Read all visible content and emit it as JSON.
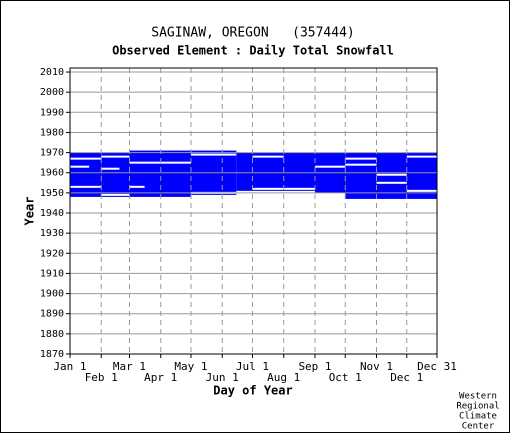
{
  "chart_data": {
    "type": "coverage",
    "title": "SAGINAW, OREGON   (357444)",
    "subtitle": "Observed Element : Daily Total Snowfall",
    "x_label": "Day of Year",
    "y_label": "Year",
    "footer": [
      "Western",
      "Regional",
      "Climate",
      "Center"
    ],
    "color": "#0000ff",
    "gap_color": "#ffffff",
    "grid": true,
    "xlim": [
      1,
      365
    ],
    "ylim": [
      1870,
      2012
    ],
    "xticks": [
      {
        "value": 1,
        "label": "Jan 1"
      },
      {
        "value": 32,
        "label": "Feb 1"
      },
      {
        "value": 60,
        "label": "Mar 1"
      },
      {
        "value": 91,
        "label": "Apr 1"
      },
      {
        "value": 121,
        "label": "May 1"
      },
      {
        "value": 152,
        "label": "Jun 1"
      },
      {
        "value": 182,
        "label": "Jul 1"
      },
      {
        "value": 213,
        "label": "Aug 1"
      },
      {
        "value": 244,
        "label": "Sep 1"
      },
      {
        "value": 274,
        "label": "Oct 1"
      },
      {
        "value": 305,
        "label": "Nov 1"
      },
      {
        "value": 335,
        "label": "Dec 1"
      },
      {
        "value": 365,
        "label": "Dec 31"
      }
    ],
    "yticks": [
      1870,
      1880,
      1890,
      1900,
      1910,
      1920,
      1930,
      1940,
      1950,
      1960,
      1970,
      1980,
      1990,
      2000,
      2010
    ],
    "blocks": [
      {
        "start_day": 1,
        "end_day": 32,
        "start_year": 1948,
        "end_year": 1970
      },
      {
        "start_day": 32,
        "end_day": 60,
        "start_year": 1948,
        "end_year": 1970
      },
      {
        "start_day": 60,
        "end_day": 121,
        "start_year": 1948,
        "end_year": 1971
      },
      {
        "start_day": 121,
        "end_day": 166,
        "start_year": 1949,
        "end_year": 1971
      },
      {
        "start_day": 166,
        "end_day": 244,
        "start_year": 1951,
        "end_year": 1970
      },
      {
        "start_day": 244,
        "end_day": 274,
        "start_year": 1950,
        "end_year": 1970
      },
      {
        "start_day": 274,
        "end_day": 365,
        "start_year": 1947,
        "end_year": 1970
      }
    ],
    "gaps": [
      {
        "start_day": 1,
        "end_day": 32,
        "year": 1967
      },
      {
        "start_day": 1,
        "end_day": 20,
        "year": 1963
      },
      {
        "start_day": 1,
        "end_day": 32,
        "year": 1953
      },
      {
        "start_day": 32,
        "end_day": 60,
        "year": 1968
      },
      {
        "start_day": 32,
        "end_day": 50,
        "year": 1962
      },
      {
        "start_day": 32,
        "end_day": 60,
        "year": 1949
      },
      {
        "start_day": 60,
        "end_day": 121,
        "year": 1965
      },
      {
        "start_day": 60,
        "end_day": 75,
        "year": 1953
      },
      {
        "start_day": 121,
        "end_day": 166,
        "year": 1969
      },
      {
        "start_day": 121,
        "end_day": 166,
        "year": 1950
      },
      {
        "start_day": 182,
        "end_day": 213,
        "year": 1968
      },
      {
        "start_day": 182,
        "end_day": 244,
        "year": 1952
      },
      {
        "start_day": 244,
        "end_day": 274,
        "year": 1963
      },
      {
        "start_day": 274,
        "end_day": 305,
        "year": 1967
      },
      {
        "start_day": 274,
        "end_day": 305,
        "year": 1964
      },
      {
        "start_day": 305,
        "end_day": 335,
        "year": 1959
      },
      {
        "start_day": 305,
        "end_day": 335,
        "year": 1955
      },
      {
        "start_day": 335,
        "end_day": 365,
        "year": 1968
      },
      {
        "start_day": 335,
        "end_day": 365,
        "year": 1951
      }
    ]
  }
}
